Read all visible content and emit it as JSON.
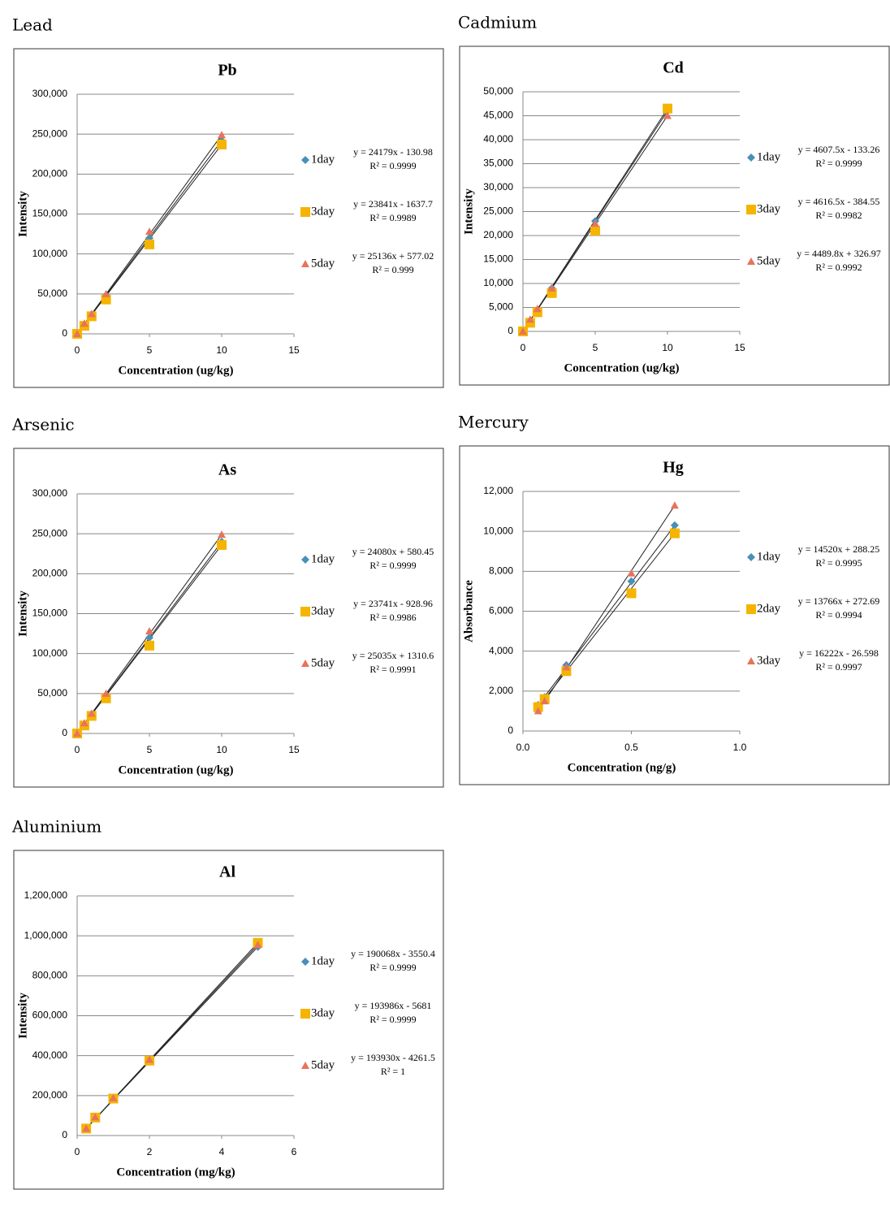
{
  "chart_data": [
    {
      "type": "scatter",
      "caption": "Lead",
      "title": "Pb",
      "xlabel": "Concentration (ug/kg)",
      "ylabel": "Intensity",
      "xlim": [
        0,
        15
      ],
      "xticks": [
        0,
        5,
        10,
        15
      ],
      "ylim": [
        0,
        300000
      ],
      "yticks": [
        0,
        {
          "value": 50000,
          "label": "50,000"
        },
        {
          "value": 100000,
          "label": "100,000"
        },
        {
          "value": 150000,
          "label": "150,000"
        },
        {
          "value": 200000,
          "label": "200,000"
        },
        {
          "value": 250000,
          "label": "250,000"
        },
        {
          "value": 300000,
          "label": "300,000"
        }
      ],
      "grid": true,
      "series": [
        {
          "name": "1day",
          "color": "#4a8fb8",
          "marker": "diamond",
          "equation": "y = 24179x - 130.98",
          "r2": "R² = 0.9999",
          "x": [
            0,
            0.5,
            1,
            2,
            5,
            10
          ],
          "values": [
            0,
            12000,
            24000,
            48000,
            120000,
            242000
          ]
        },
        {
          "name": "3day",
          "color": "#f5b400",
          "marker": "square",
          "equation": "y = 23841x - 1637.7",
          "r2": "R² = 0.9989",
          "x": [
            0,
            0.5,
            1,
            2,
            5,
            10
          ],
          "values": [
            0,
            10000,
            22000,
            43000,
            112000,
            237000
          ]
        },
        {
          "name": "5day",
          "color": "#e8735c",
          "marker": "triangle",
          "equation": "y = 25136x + 577.02",
          "r2": "R² = 0.999",
          "x": [
            0,
            0.5,
            1,
            2,
            5,
            10
          ],
          "values": [
            0,
            13000,
            25000,
            50000,
            128000,
            249000
          ]
        }
      ]
    },
    {
      "type": "scatter",
      "caption": "Cadmium",
      "title": "Cd",
      "xlabel": "Concentration (ug/kg)",
      "ylabel": "Intensity",
      "xlim": [
        0,
        15
      ],
      "xticks": [
        0,
        5,
        10,
        15
      ],
      "ylim": [
        0,
        50000
      ],
      "yticks": [
        0,
        {
          "value": 5000,
          "label": "5,000"
        },
        {
          "value": 10000,
          "label": "10,000"
        },
        {
          "value": 15000,
          "label": "15,000"
        },
        {
          "value": 20000,
          "label": "20,000"
        },
        {
          "value": 25000,
          "label": "25,000"
        },
        {
          "value": 30000,
          "label": "30,000"
        },
        {
          "value": 35000,
          "label": "35,000"
        },
        {
          "value": 40000,
          "label": "40,000"
        },
        {
          "value": 45000,
          "label": "45,000"
        },
        {
          "value": 50000,
          "label": "50,000"
        }
      ],
      "grid": true,
      "series": [
        {
          "name": "1day",
          "color": "#4a8fb8",
          "marker": "diamond",
          "equation": "y = 4607.5x - 133.26",
          "r2": "R² = 0.9999",
          "x": [
            0,
            0.5,
            1,
            2,
            5,
            10
          ],
          "values": [
            0,
            2200,
            4500,
            9000,
            23000,
            46000
          ]
        },
        {
          "name": "3day",
          "color": "#f5b400",
          "marker": "square",
          "equation": "y = 4616.5x - 384.55",
          "r2": "R² = 0.9982",
          "x": [
            0,
            0.5,
            1,
            2,
            5,
            10
          ],
          "values": [
            0,
            1800,
            4000,
            8000,
            21000,
            46500
          ]
        },
        {
          "name": "5day",
          "color": "#e8735c",
          "marker": "triangle",
          "equation": "y = 4489.8x + 326.97",
          "r2": "R² = 0.9992",
          "x": [
            0,
            0.5,
            1,
            2,
            5,
            10
          ],
          "values": [
            0,
            2500,
            4700,
            9000,
            22500,
            45000
          ]
        }
      ]
    },
    {
      "type": "scatter",
      "caption": "Arsenic",
      "title": "As",
      "xlabel": "Concentration (ug/kg)",
      "ylabel": "Intensity",
      "xlim": [
        0,
        15
      ],
      "xticks": [
        0,
        5,
        10,
        15
      ],
      "ylim": [
        0,
        300000
      ],
      "yticks": [
        0,
        {
          "value": 50000,
          "label": "50,000"
        },
        {
          "value": 100000,
          "label": "100,000"
        },
        {
          "value": 150000,
          "label": "150,000"
        },
        {
          "value": 200000,
          "label": "200,000"
        },
        {
          "value": 250000,
          "label": "250,000"
        },
        {
          "value": 300000,
          "label": "300,000"
        }
      ],
      "grid": true,
      "series": [
        {
          "name": "1day",
          "color": "#4a8fb8",
          "marker": "diamond",
          "equation": "y = 24080x + 580.45",
          "r2": "R² = 0.9999",
          "x": [
            0,
            0.5,
            1,
            2,
            5,
            10
          ],
          "values": [
            0,
            12000,
            24000,
            48000,
            120000,
            240000
          ]
        },
        {
          "name": "3day",
          "color": "#f5b400",
          "marker": "square",
          "equation": "y = 23741x - 928.96",
          "r2": "R² = 0.9986",
          "x": [
            0,
            0.5,
            1,
            2,
            5,
            10
          ],
          "values": [
            0,
            10000,
            22000,
            44000,
            110000,
            236000
          ]
        },
        {
          "name": "5day",
          "color": "#e8735c",
          "marker": "triangle",
          "equation": "y = 25035x + 1310.6",
          "r2": "R² = 0.9991",
          "x": [
            0,
            0.5,
            1,
            2,
            5,
            10
          ],
          "values": [
            0,
            13000,
            25000,
            50000,
            128000,
            249000
          ]
        }
      ]
    },
    {
      "type": "scatter",
      "caption": "Mercury",
      "title": "Hg",
      "xlabel": "Concentration (ng/g)",
      "ylabel": "Absorbance",
      "xlim": [
        0,
        1
      ],
      "xticks": [
        {
          "value": 0,
          "label": "0.0"
        },
        0.5,
        {
          "value": 1,
          "label": "1.0"
        }
      ],
      "ylim": [
        0,
        12000
      ],
      "yticks": [
        0,
        {
          "value": 2000,
          "label": "2,000"
        },
        {
          "value": 4000,
          "label": "4,000"
        },
        {
          "value": 6000,
          "label": "6,000"
        },
        {
          "value": 8000,
          "label": "8,000"
        },
        {
          "value": 10000,
          "label": "10,000"
        },
        {
          "value": 12000,
          "label": "12,000"
        }
      ],
      "grid": true,
      "series": [
        {
          "name": "1day",
          "color": "#4a8fb8",
          "marker": "diamond",
          "equation": "y = 14520x + 288.25",
          "r2": "R² = 0.9995",
          "x": [
            0.07,
            0.1,
            0.2,
            0.5,
            0.7
          ],
          "values": [
            1300,
            1700,
            3300,
            7500,
            10300
          ]
        },
        {
          "name": "2day",
          "color": "#f5b400",
          "marker": "square",
          "equation": "y = 13766x + 272.69",
          "r2": "R² = 0.9994",
          "x": [
            0.07,
            0.1,
            0.2,
            0.5,
            0.7
          ],
          "values": [
            1200,
            1600,
            3000,
            6900,
            9900
          ]
        },
        {
          "name": "3day",
          "color": "#e8735c",
          "marker": "triangle",
          "equation": "y = 16222x - 26.598",
          "r2": "R² = 0.9997",
          "x": [
            0.07,
            0.1,
            0.2,
            0.5,
            0.7
          ],
          "values": [
            1000,
            1500,
            3200,
            7900,
            11300
          ]
        }
      ]
    },
    {
      "type": "scatter",
      "caption": "Aluminium",
      "title": "Al",
      "xlabel": "Concentration (mg/kg)",
      "ylabel": "Intensity",
      "xlim": [
        0,
        6
      ],
      "xticks": [
        0,
        2,
        4,
        6
      ],
      "ylim": [
        0,
        1200000
      ],
      "yticks": [
        0,
        {
          "value": 200000,
          "label": "200,000"
        },
        {
          "value": 400000,
          "label": "400,000"
        },
        {
          "value": 600000,
          "label": "600,000"
        },
        {
          "value": 800000,
          "label": "800,000"
        },
        {
          "value": 1000000,
          "label": "1,000,000"
        },
        {
          "value": 1200000,
          "label": "1,200,000"
        }
      ],
      "grid": true,
      "series": [
        {
          "name": "1day",
          "color": "#4a8fb8",
          "marker": "diamond",
          "equation": "y = 190068x - 3550.4",
          "r2": "R² = 0.9999",
          "x": [
            0.25,
            0.5,
            1,
            2,
            5
          ],
          "values": [
            35000,
            90000,
            185000,
            375000,
            945000
          ]
        },
        {
          "name": "3day",
          "color": "#f5b400",
          "marker": "square",
          "equation": "y = 193986x - 5681",
          "r2": "R² = 0.9999",
          "x": [
            0.25,
            0.5,
            1,
            2,
            5
          ],
          "values": [
            35000,
            90000,
            185000,
            375000,
            965000
          ]
        },
        {
          "name": "5day",
          "color": "#e8735c",
          "marker": "triangle",
          "equation": "y = 193930x - 4261.5",
          "r2": "R² = 1",
          "x": [
            0.25,
            0.5,
            1,
            2,
            5
          ],
          "values": [
            35000,
            92000,
            188000,
            380000,
            955000
          ]
        }
      ]
    }
  ]
}
